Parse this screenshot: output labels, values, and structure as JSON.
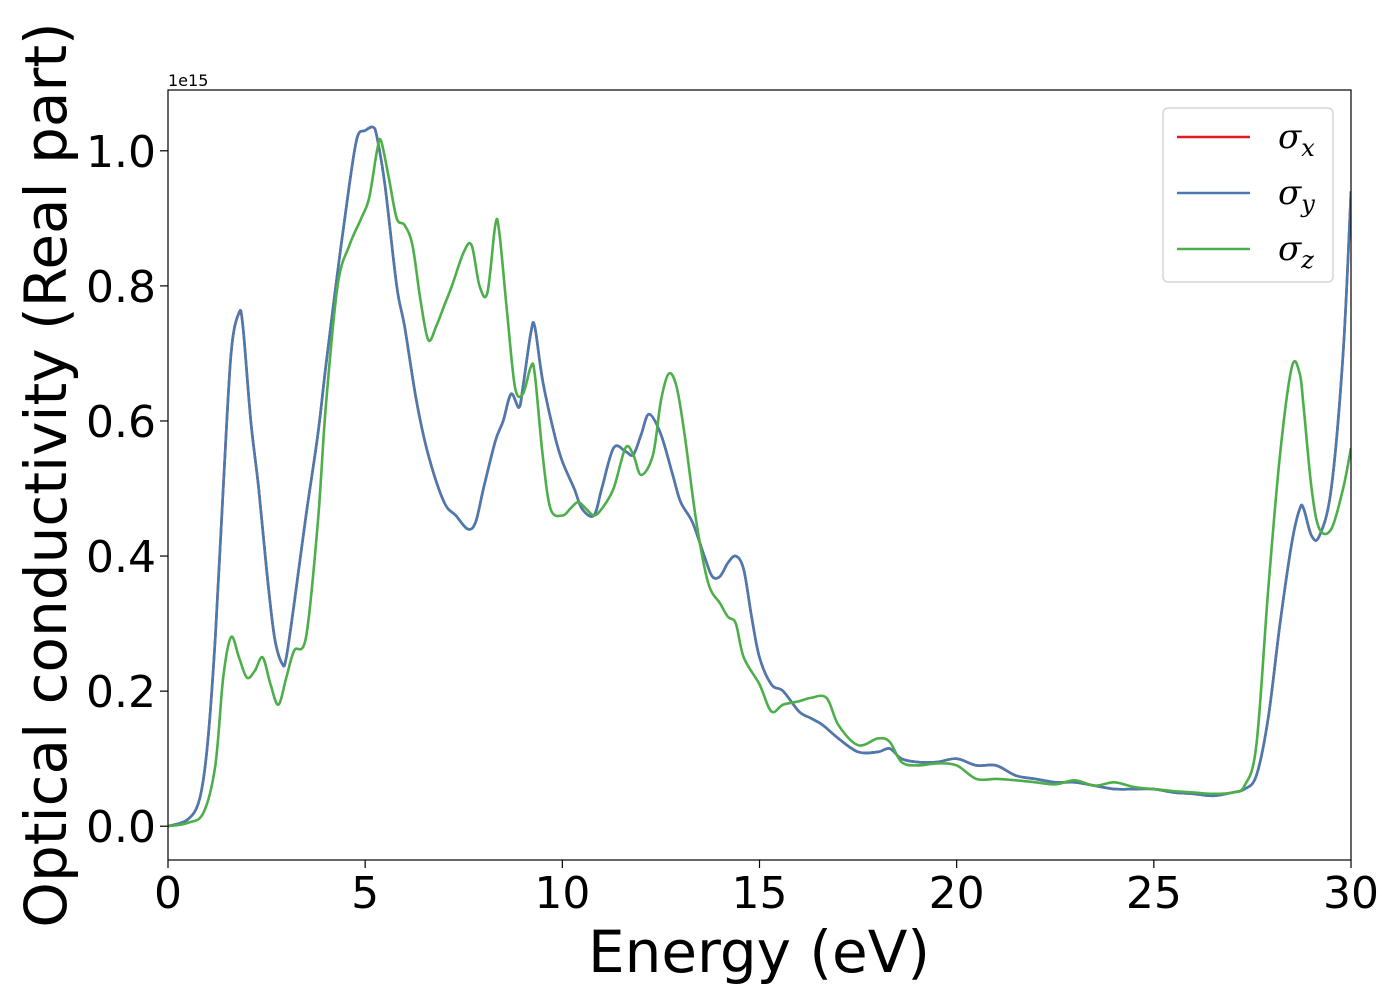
{
  "chart_data": {
    "type": "line",
    "title": "",
    "xlabel": "Energy (eV)",
    "ylabel": "Optical conductivity (Real part)",
    "y_offset_label": "1e15",
    "xlim": [
      0,
      30
    ],
    "ylim": [
      -0.05,
      1.09
    ],
    "x_ticks": [
      0,
      5,
      10,
      15,
      20,
      25,
      30
    ],
    "x_tick_labels": [
      "0",
      "5",
      "10",
      "15",
      "20",
      "25",
      "30"
    ],
    "y_ticks": [
      0.0,
      0.2,
      0.4,
      0.6,
      0.8,
      1.0
    ],
    "y_tick_labels": [
      "0.0",
      "0.2",
      "0.4",
      "0.6",
      "0.8",
      "1.0"
    ],
    "grid": false,
    "legend_position": "top-right",
    "series": [
      {
        "name": "σx",
        "symbol": "σ",
        "subscript": "x",
        "color": "#e41a1c",
        "x": [
          0,
          0.5,
          0.8,
          1.0,
          1.2,
          1.4,
          1.6,
          1.8,
          1.9,
          2.1,
          2.3,
          2.5,
          2.7,
          2.9,
          3.0,
          3.2,
          3.5,
          3.8,
          4.0,
          4.3,
          4.6,
          4.8,
          5.0,
          5.2,
          5.3,
          5.5,
          5.8,
          6.0,
          6.3,
          6.6,
          7.0,
          7.3,
          7.6,
          7.8,
          8.0,
          8.3,
          8.5,
          8.7,
          8.9,
          9.0,
          9.2,
          9.3,
          9.5,
          9.8,
          10.0,
          10.3,
          10.5,
          10.8,
          11.0,
          11.3,
          11.6,
          11.8,
          12.0,
          12.2,
          12.5,
          12.8,
          13.0,
          13.3,
          13.6,
          13.8,
          14.0,
          14.2,
          14.4,
          14.6,
          14.8,
          15.0,
          15.3,
          15.6,
          16.0,
          16.3,
          16.6,
          17.0,
          17.5,
          18.0,
          18.3,
          18.6,
          19.0,
          19.5,
          20.0,
          20.5,
          21.0,
          21.5,
          22.0,
          22.5,
          23.0,
          23.5,
          24.0,
          24.5,
          25.0,
          25.5,
          26.0,
          26.5,
          27.0,
          27.3,
          27.6,
          27.9,
          28.2,
          28.5,
          28.7,
          28.8,
          29.0,
          29.2,
          29.5,
          29.8,
          30.0
        ],
        "y": [
          0.0,
          0.01,
          0.04,
          0.12,
          0.28,
          0.5,
          0.7,
          0.76,
          0.74,
          0.6,
          0.5,
          0.38,
          0.28,
          0.24,
          0.25,
          0.33,
          0.46,
          0.58,
          0.68,
          0.82,
          0.95,
          1.02,
          1.03,
          1.035,
          1.02,
          0.95,
          0.8,
          0.74,
          0.63,
          0.55,
          0.48,
          0.46,
          0.44,
          0.45,
          0.5,
          0.57,
          0.6,
          0.64,
          0.62,
          0.65,
          0.73,
          0.74,
          0.66,
          0.58,
          0.54,
          0.5,
          0.47,
          0.46,
          0.5,
          0.56,
          0.555,
          0.55,
          0.58,
          0.61,
          0.58,
          0.52,
          0.48,
          0.45,
          0.4,
          0.37,
          0.37,
          0.39,
          0.4,
          0.38,
          0.31,
          0.25,
          0.21,
          0.2,
          0.17,
          0.16,
          0.15,
          0.13,
          0.11,
          0.11,
          0.115,
          0.1,
          0.095,
          0.095,
          0.1,
          0.09,
          0.09,
          0.075,
          0.07,
          0.065,
          0.065,
          0.06,
          0.055,
          0.055,
          0.055,
          0.05,
          0.048,
          0.045,
          0.05,
          0.055,
          0.075,
          0.16,
          0.3,
          0.42,
          0.47,
          0.47,
          0.43,
          0.43,
          0.5,
          0.7,
          0.94
        ]
      },
      {
        "name": "σy",
        "symbol": "σ",
        "subscript": "y",
        "color": "#4a7bb0",
        "x": [
          0,
          0.5,
          0.8,
          1.0,
          1.2,
          1.4,
          1.6,
          1.8,
          1.9,
          2.1,
          2.3,
          2.5,
          2.7,
          2.9,
          3.0,
          3.2,
          3.5,
          3.8,
          4.0,
          4.3,
          4.6,
          4.8,
          5.0,
          5.2,
          5.3,
          5.5,
          5.8,
          6.0,
          6.3,
          6.6,
          7.0,
          7.3,
          7.6,
          7.8,
          8.0,
          8.3,
          8.5,
          8.7,
          8.9,
          9.0,
          9.2,
          9.3,
          9.5,
          9.8,
          10.0,
          10.3,
          10.5,
          10.8,
          11.0,
          11.3,
          11.6,
          11.8,
          12.0,
          12.2,
          12.5,
          12.8,
          13.0,
          13.3,
          13.6,
          13.8,
          14.0,
          14.2,
          14.4,
          14.6,
          14.8,
          15.0,
          15.3,
          15.6,
          16.0,
          16.3,
          16.6,
          17.0,
          17.5,
          18.0,
          18.3,
          18.6,
          19.0,
          19.5,
          20.0,
          20.5,
          21.0,
          21.5,
          22.0,
          22.5,
          23.0,
          23.5,
          24.0,
          24.5,
          25.0,
          25.5,
          26.0,
          26.5,
          27.0,
          27.3,
          27.6,
          27.9,
          28.2,
          28.5,
          28.7,
          28.8,
          29.0,
          29.2,
          29.5,
          29.8,
          30.0
        ],
        "y": [
          0.0,
          0.01,
          0.04,
          0.12,
          0.28,
          0.5,
          0.7,
          0.76,
          0.74,
          0.6,
          0.5,
          0.38,
          0.28,
          0.24,
          0.25,
          0.33,
          0.46,
          0.58,
          0.68,
          0.82,
          0.95,
          1.02,
          1.03,
          1.035,
          1.02,
          0.95,
          0.8,
          0.74,
          0.63,
          0.55,
          0.48,
          0.46,
          0.44,
          0.45,
          0.5,
          0.57,
          0.6,
          0.64,
          0.62,
          0.65,
          0.73,
          0.74,
          0.66,
          0.58,
          0.54,
          0.5,
          0.47,
          0.46,
          0.5,
          0.56,
          0.555,
          0.55,
          0.58,
          0.61,
          0.58,
          0.52,
          0.48,
          0.45,
          0.4,
          0.37,
          0.37,
          0.39,
          0.4,
          0.38,
          0.31,
          0.25,
          0.21,
          0.2,
          0.17,
          0.16,
          0.15,
          0.13,
          0.11,
          0.11,
          0.115,
          0.1,
          0.095,
          0.095,
          0.1,
          0.09,
          0.09,
          0.075,
          0.07,
          0.065,
          0.065,
          0.06,
          0.055,
          0.055,
          0.055,
          0.05,
          0.048,
          0.045,
          0.05,
          0.055,
          0.075,
          0.16,
          0.3,
          0.42,
          0.47,
          0.47,
          0.43,
          0.43,
          0.5,
          0.7,
          0.94
        ]
      },
      {
        "name": "σz",
        "symbol": "σ",
        "subscript": "z",
        "color": "#4daf4a",
        "x": [
          0,
          0.5,
          0.9,
          1.2,
          1.4,
          1.6,
          1.8,
          2.0,
          2.2,
          2.4,
          2.6,
          2.8,
          3.0,
          3.2,
          3.5,
          3.8,
          4.0,
          4.3,
          4.6,
          4.9,
          5.1,
          5.3,
          5.4,
          5.6,
          5.8,
          6.0,
          6.2,
          6.4,
          6.6,
          6.8,
          7.0,
          7.2,
          7.5,
          7.7,
          7.9,
          8.1,
          8.3,
          8.4,
          8.6,
          8.8,
          9.0,
          9.2,
          9.3,
          9.5,
          9.7,
          10.0,
          10.2,
          10.4,
          10.6,
          10.8,
          11.0,
          11.3,
          11.6,
          11.8,
          12.0,
          12.3,
          12.5,
          12.7,
          12.9,
          13.1,
          13.4,
          13.7,
          14.0,
          14.2,
          14.4,
          14.6,
          15.0,
          15.3,
          15.6,
          16.0,
          16.3,
          16.7,
          17.0,
          17.5,
          18.0,
          18.3,
          18.6,
          19.0,
          19.5,
          20.0,
          20.5,
          21.0,
          21.5,
          22.0,
          22.5,
          23.0,
          23.5,
          24.0,
          24.5,
          25.0,
          25.5,
          26.0,
          26.5,
          27.0,
          27.3,
          27.6,
          27.9,
          28.2,
          28.5,
          28.7,
          28.8,
          29.0,
          29.2,
          29.5,
          29.8,
          30.0
        ],
        "y": [
          0.0,
          0.005,
          0.02,
          0.09,
          0.22,
          0.28,
          0.25,
          0.22,
          0.23,
          0.25,
          0.21,
          0.18,
          0.22,
          0.26,
          0.28,
          0.45,
          0.62,
          0.8,
          0.86,
          0.9,
          0.93,
          1.0,
          1.015,
          0.96,
          0.9,
          0.89,
          0.86,
          0.78,
          0.72,
          0.74,
          0.77,
          0.8,
          0.85,
          0.86,
          0.8,
          0.79,
          0.89,
          0.88,
          0.76,
          0.65,
          0.64,
          0.68,
          0.67,
          0.55,
          0.47,
          0.46,
          0.47,
          0.48,
          0.47,
          0.46,
          0.47,
          0.5,
          0.56,
          0.55,
          0.52,
          0.55,
          0.63,
          0.67,
          0.65,
          0.58,
          0.45,
          0.36,
          0.33,
          0.31,
          0.3,
          0.25,
          0.21,
          0.17,
          0.18,
          0.185,
          0.19,
          0.19,
          0.15,
          0.12,
          0.13,
          0.125,
          0.095,
          0.09,
          0.093,
          0.09,
          0.07,
          0.07,
          0.068,
          0.065,
          0.062,
          0.068,
          0.06,
          0.065,
          0.058,
          0.055,
          0.052,
          0.05,
          0.048,
          0.05,
          0.06,
          0.12,
          0.35,
          0.55,
          0.68,
          0.67,
          0.62,
          0.5,
          0.44,
          0.44,
          0.5,
          0.56
        ]
      }
    ]
  }
}
